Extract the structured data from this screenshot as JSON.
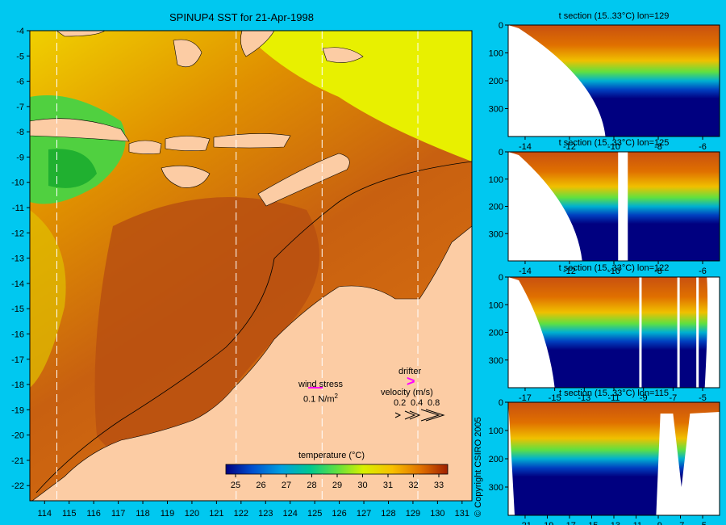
{
  "main_map": {
    "title": "SPINUP4 SST for 21-Apr-1998",
    "lat_ticks": [
      "-4",
      "-5",
      "-6",
      "-7",
      "-8",
      "-9",
      "-10",
      "-11",
      "-12",
      "-13",
      "-14",
      "-15",
      "-16",
      "-17",
      "-18",
      "-19",
      "-20",
      "-21",
      "-22"
    ],
    "lon_ticks": [
      "114",
      "115",
      "116",
      "117",
      "118",
      "119",
      "120",
      "121",
      "122",
      "123",
      "124",
      "125",
      "126",
      "127",
      "128",
      "129",
      "130",
      "131"
    ],
    "section_lines_lon": [
      114.5,
      121.8,
      125.3,
      129.2
    ]
  },
  "legend": {
    "wind_title": "wind stress",
    "wind_value": "0.1 N/m",
    "wind_sup": "2",
    "drifter_label": "drifter",
    "velocity_title": "velocity (m/s)",
    "velocity_values": [
      "0.2",
      "0.4",
      "0.8"
    ],
    "colorbar_title": "temperature (°C)",
    "colorbar_ticks": [
      "25",
      "26",
      "27",
      "28",
      "29",
      "30",
      "31",
      "32",
      "33"
    ],
    "colors": {
      "drifter": "#ff00ff",
      "wind_arrow": "#ff00ff",
      "land": "#fccca4",
      "background": "#00c8f0"
    }
  },
  "sections": [
    {
      "title": "t section (15..33°C) lon=129",
      "depth_ticks": [
        "0",
        "100",
        "200",
        "300"
      ],
      "lat_ticks": [
        "-14",
        "-12",
        "-10",
        "-8",
        "-6"
      ]
    },
    {
      "title": "t section (15..33°C) lon=125",
      "depth_ticks": [
        "0",
        "100",
        "200",
        "300"
      ],
      "lat_ticks": [
        "-14",
        "-12",
        "-10",
        "-8",
        "-6"
      ]
    },
    {
      "title": "t section (15..33°C) lon=122",
      "depth_ticks": [
        "0",
        "100",
        "200",
        "300"
      ],
      "lat_ticks": [
        "-17",
        "-15",
        "-13",
        "-11",
        "-9",
        "-7",
        "-5"
      ]
    },
    {
      "title": "t section (15..33°C) lon=115",
      "depth_ticks": [
        "0",
        "100",
        "200",
        "300"
      ],
      "lat_ticks": [
        "-21",
        "-19",
        "-17",
        "-15",
        "-13",
        "-11",
        "-9",
        "-7",
        "-5"
      ]
    }
  ],
  "copyright": "© Copyright CSIRO 2005"
}
